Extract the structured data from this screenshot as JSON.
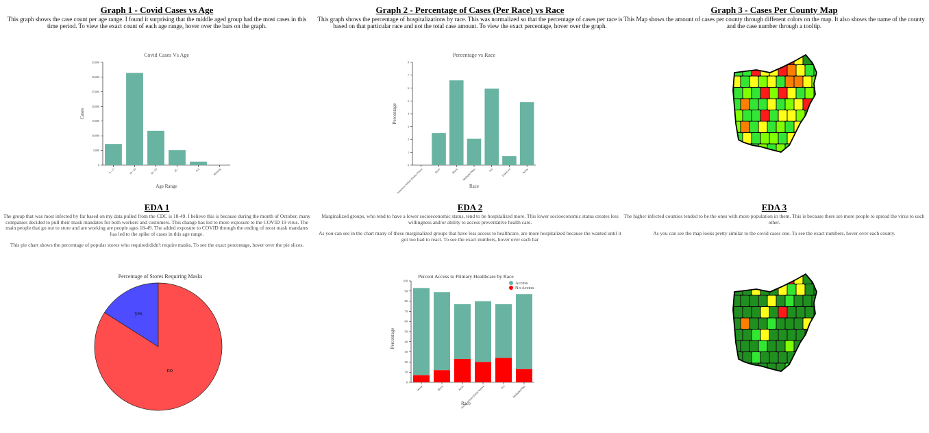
{
  "graph1": {
    "heading": "Graph 1 - Covid Cases vs Age",
    "description": "This graph shows the case count per age range. I found it surprising that the middle aged group had the most cases in this time period. To view the exact count of each age range, hover over the bars on the graph."
  },
  "graph2": {
    "heading": "Graph 2 - Percentage of Cases (Per Race) vs Race",
    "description": "This graph shows the percentage of hospitalizations by race. This was normalized so that the percentage of cases per race is based on that particular race and not the total case amount. To view the exact percentage, hover over the graph."
  },
  "graph3": {
    "heading": "Graph 3 - Cases Per County Map",
    "description": "This Map shows the amount of cases per county through different colors on the map. It also shows the name of the county and the case number through a tooltip."
  },
  "eda1": {
    "heading": "EDA 1",
    "para1": "The group that was most infected by far based on my data pulled from the CDC is 18-49. I believe this is because during the month of October, many companies decided to pull their mask mandates for both workers and customers. This change has led to more exposure to the COVID 19 virus. The main people that go out to store and are working are people ages 18-49. The added exposure to COVID through the ending of most mask mandates has led to the spike of cases in this age range.",
    "para2": "This pie chart shows the percentage of popular stores who required/didn't require masks. To see the exact percentage, hover over the pie slices."
  },
  "eda2": {
    "heading": "EDA 2",
    "para1": "Marginalized groups, who tend to have a lower socioeconomic status, tend to be hospitalized more. This lower socioeconomic status creates less willingness and/or ability to access preventative health care.",
    "para2": "As you can see in the chart many of these marginalized groups that have less access to healthcare, are more hospitalized because the wanted until it got too bad to react. To see the exact numbers, hover over each bar"
  },
  "eda3": {
    "heading": "EDA 3",
    "para1": "The higher infected counties tended to be the ones with more population in them. This is because there are more people to spread the virus to each other.",
    "para2": "As you can see the map looks pretty similar to the covid cases one. To see the exact numbers, hover over each county."
  },
  "colors": {
    "bar": "#69b3a2",
    "access": "#69b3a2",
    "no_access": "#ff0000",
    "pie_no": "#ff4d4d",
    "pie_yes": "#4d4dff",
    "map_dark_green": "#1f8f1f",
    "map_green": "#33e633",
    "map_light_green": "#80ff00",
    "map_yellow": "#ffff1a",
    "map_orange": "#ff7f00",
    "map_red": "#ff1a1a"
  },
  "chart_data": [
    {
      "id": "cases-vs-age",
      "type": "bar",
      "title": "Covid Cases Vs Age",
      "xlabel": "Age Range",
      "ylabel": "Cases",
      "categories": [
        "0 - 17",
        "18 - 49",
        "50 - 64",
        "65+",
        "NA",
        "Missing"
      ],
      "values": [
        7200,
        31400,
        11700,
        5100,
        1200,
        0
      ],
      "ylim": [
        0,
        35000
      ],
      "yticks": [
        "0",
        "5,000",
        "10,000",
        "15,000",
        "20,000",
        "25,000",
        "30,000",
        "35,000"
      ],
      "ytick_values": [
        0,
        5000,
        10000,
        15000,
        20000,
        25000,
        30000,
        35000
      ]
    },
    {
      "id": "percentage-vs-race",
      "type": "bar",
      "title": "Percentage vs Race",
      "xlabel": "Race",
      "ylabel": "Percentage",
      "categories": [
        "American Indian/Alaska Native",
        "Asian",
        "Black",
        "Multiple/Other",
        "NA",
        "Unknown",
        "White"
      ],
      "values": [
        0,
        2.5,
        6.6,
        2.05,
        5.95,
        0.7,
        4.9
      ],
      "ylim": [
        0,
        8
      ],
      "yticks": [
        "0",
        "1",
        "2",
        "3",
        "4",
        "5",
        "6",
        "7",
        "8"
      ],
      "ytick_values": [
        0,
        1,
        2,
        3,
        4,
        5,
        6,
        7,
        8
      ]
    },
    {
      "id": "stores-requiring-masks",
      "type": "pie",
      "title": "Percentage of Stores Requiring Masks",
      "labels": [
        "yes",
        "no"
      ],
      "values": [
        16,
        84
      ]
    },
    {
      "id": "access-primary-healthcare",
      "type": "bar",
      "stacked": true,
      "title": "Percent Access to Primary Healthcare by Race",
      "xlabel": "Race",
      "ylabel": "Percentage",
      "categories": [
        "White",
        "Black",
        "Asian",
        "American Indian/Alaska Native",
        "NA",
        "Multiple/Other"
      ],
      "series": [
        {
          "name": "No Access",
          "values": [
            7,
            12,
            23,
            20,
            24,
            13
          ]
        },
        {
          "name": "Access",
          "values": [
            86,
            77,
            54,
            60,
            53,
            74
          ]
        }
      ],
      "ylim": [
        0,
        100
      ],
      "yticks": [
        "0",
        "10",
        "20",
        "30",
        "40",
        "50",
        "60",
        "70",
        "80",
        "90",
        "100"
      ],
      "ytick_values": [
        0,
        10,
        20,
        30,
        40,
        50,
        60,
        70,
        80,
        90,
        100
      ],
      "legend": [
        "Access",
        "No Access"
      ],
      "legend_position": "top-right"
    }
  ],
  "maps": {
    "cases": [
      "r",
      "r",
      "y",
      "y",
      "y",
      "o",
      "r",
      "y",
      "dg",
      "g",
      "g",
      "g",
      "r",
      "y",
      "y",
      "r",
      "o",
      "y",
      "g",
      "g",
      "y",
      "g",
      "y",
      "lg",
      "y",
      "g",
      "o",
      "o",
      "y",
      "lg",
      "g",
      "lg",
      "g",
      "r",
      "lg",
      "r",
      "y",
      "g",
      "lg",
      "lg",
      "g",
      "o",
      "g",
      "g",
      "y",
      "g",
      "lg",
      "y",
      "r",
      "g",
      "lg",
      "g",
      "g",
      "r",
      "g",
      "y",
      "y",
      "lg",
      "g",
      "g",
      "lg",
      "o",
      "g",
      "y",
      "g",
      "lg",
      "g",
      "y",
      "lg",
      "g",
      "g",
      "y",
      "g",
      "lg",
      "lg",
      "g",
      "y",
      "y",
      "lg",
      "y",
      "g",
      "g",
      "g",
      "lg",
      "g",
      "lg",
      "g",
      "lg"
    ],
    "population": [
      "dg",
      "dg",
      "y",
      "r",
      "r",
      "o",
      "r",
      "y",
      "dg",
      "dg",
      "dg",
      "dg",
      "y",
      "dg",
      "dg",
      "y",
      "g",
      "y",
      "dg",
      "dg",
      "dg",
      "dg",
      "dg",
      "dg",
      "y",
      "dg",
      "g",
      "dg",
      "dg",
      "dg",
      "dg",
      "dg",
      "dg",
      "y",
      "dg",
      "r",
      "dg",
      "dg",
      "dg",
      "dg",
      "dg",
      "o",
      "dg",
      "dg",
      "g",
      "dg",
      "dg",
      "dg",
      "y",
      "dg",
      "dg",
      "dg",
      "g",
      "y",
      "dg",
      "dg",
      "dg",
      "dg",
      "dg",
      "dg",
      "dg",
      "dg",
      "dg",
      "g",
      "dg",
      "dg",
      "lg",
      "dg",
      "dg",
      "dg",
      "dg",
      "dg",
      "g",
      "dg",
      "dg",
      "dg",
      "dg",
      "g",
      "dg",
      "g",
      "dg",
      "dg",
      "dg",
      "dg",
      "dg",
      "dg",
      "g",
      "g"
    ]
  }
}
